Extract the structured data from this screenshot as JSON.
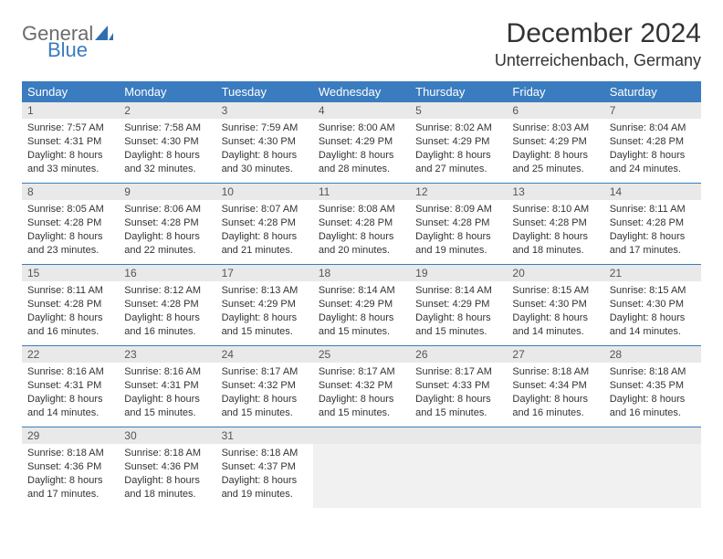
{
  "logo": {
    "line1": "General",
    "line2": "Blue"
  },
  "title": "December 2024",
  "location": "Unterreichenbach, Germany",
  "colors": {
    "header_bg": "#3a7cbf",
    "header_text": "#ffffff",
    "daynum_bg": "#e9e9e9",
    "text": "#333333",
    "rule": "#3a7cbf"
  },
  "dayNames": [
    "Sunday",
    "Monday",
    "Tuesday",
    "Wednesday",
    "Thursday",
    "Friday",
    "Saturday"
  ],
  "weeks": [
    [
      {
        "n": "1",
        "sr": "Sunrise: 7:57 AM",
        "ss": "Sunset: 4:31 PM",
        "d1": "Daylight: 8 hours",
        "d2": "and 33 minutes."
      },
      {
        "n": "2",
        "sr": "Sunrise: 7:58 AM",
        "ss": "Sunset: 4:30 PM",
        "d1": "Daylight: 8 hours",
        "d2": "and 32 minutes."
      },
      {
        "n": "3",
        "sr": "Sunrise: 7:59 AM",
        "ss": "Sunset: 4:30 PM",
        "d1": "Daylight: 8 hours",
        "d2": "and 30 minutes."
      },
      {
        "n": "4",
        "sr": "Sunrise: 8:00 AM",
        "ss": "Sunset: 4:29 PM",
        "d1": "Daylight: 8 hours",
        "d2": "and 28 minutes."
      },
      {
        "n": "5",
        "sr": "Sunrise: 8:02 AM",
        "ss": "Sunset: 4:29 PM",
        "d1": "Daylight: 8 hours",
        "d2": "and 27 minutes."
      },
      {
        "n": "6",
        "sr": "Sunrise: 8:03 AM",
        "ss": "Sunset: 4:29 PM",
        "d1": "Daylight: 8 hours",
        "d2": "and 25 minutes."
      },
      {
        "n": "7",
        "sr": "Sunrise: 8:04 AM",
        "ss": "Sunset: 4:28 PM",
        "d1": "Daylight: 8 hours",
        "d2": "and 24 minutes."
      }
    ],
    [
      {
        "n": "8",
        "sr": "Sunrise: 8:05 AM",
        "ss": "Sunset: 4:28 PM",
        "d1": "Daylight: 8 hours",
        "d2": "and 23 minutes."
      },
      {
        "n": "9",
        "sr": "Sunrise: 8:06 AM",
        "ss": "Sunset: 4:28 PM",
        "d1": "Daylight: 8 hours",
        "d2": "and 22 minutes."
      },
      {
        "n": "10",
        "sr": "Sunrise: 8:07 AM",
        "ss": "Sunset: 4:28 PM",
        "d1": "Daylight: 8 hours",
        "d2": "and 21 minutes."
      },
      {
        "n": "11",
        "sr": "Sunrise: 8:08 AM",
        "ss": "Sunset: 4:28 PM",
        "d1": "Daylight: 8 hours",
        "d2": "and 20 minutes."
      },
      {
        "n": "12",
        "sr": "Sunrise: 8:09 AM",
        "ss": "Sunset: 4:28 PM",
        "d1": "Daylight: 8 hours",
        "d2": "and 19 minutes."
      },
      {
        "n": "13",
        "sr": "Sunrise: 8:10 AM",
        "ss": "Sunset: 4:28 PM",
        "d1": "Daylight: 8 hours",
        "d2": "and 18 minutes."
      },
      {
        "n": "14",
        "sr": "Sunrise: 8:11 AM",
        "ss": "Sunset: 4:28 PM",
        "d1": "Daylight: 8 hours",
        "d2": "and 17 minutes."
      }
    ],
    [
      {
        "n": "15",
        "sr": "Sunrise: 8:11 AM",
        "ss": "Sunset: 4:28 PM",
        "d1": "Daylight: 8 hours",
        "d2": "and 16 minutes."
      },
      {
        "n": "16",
        "sr": "Sunrise: 8:12 AM",
        "ss": "Sunset: 4:28 PM",
        "d1": "Daylight: 8 hours",
        "d2": "and 16 minutes."
      },
      {
        "n": "17",
        "sr": "Sunrise: 8:13 AM",
        "ss": "Sunset: 4:29 PM",
        "d1": "Daylight: 8 hours",
        "d2": "and 15 minutes."
      },
      {
        "n": "18",
        "sr": "Sunrise: 8:14 AM",
        "ss": "Sunset: 4:29 PM",
        "d1": "Daylight: 8 hours",
        "d2": "and 15 minutes."
      },
      {
        "n": "19",
        "sr": "Sunrise: 8:14 AM",
        "ss": "Sunset: 4:29 PM",
        "d1": "Daylight: 8 hours",
        "d2": "and 15 minutes."
      },
      {
        "n": "20",
        "sr": "Sunrise: 8:15 AM",
        "ss": "Sunset: 4:30 PM",
        "d1": "Daylight: 8 hours",
        "d2": "and 14 minutes."
      },
      {
        "n": "21",
        "sr": "Sunrise: 8:15 AM",
        "ss": "Sunset: 4:30 PM",
        "d1": "Daylight: 8 hours",
        "d2": "and 14 minutes."
      }
    ],
    [
      {
        "n": "22",
        "sr": "Sunrise: 8:16 AM",
        "ss": "Sunset: 4:31 PM",
        "d1": "Daylight: 8 hours",
        "d2": "and 14 minutes."
      },
      {
        "n": "23",
        "sr": "Sunrise: 8:16 AM",
        "ss": "Sunset: 4:31 PM",
        "d1": "Daylight: 8 hours",
        "d2": "and 15 minutes."
      },
      {
        "n": "24",
        "sr": "Sunrise: 8:17 AM",
        "ss": "Sunset: 4:32 PM",
        "d1": "Daylight: 8 hours",
        "d2": "and 15 minutes."
      },
      {
        "n": "25",
        "sr": "Sunrise: 8:17 AM",
        "ss": "Sunset: 4:32 PM",
        "d1": "Daylight: 8 hours",
        "d2": "and 15 minutes."
      },
      {
        "n": "26",
        "sr": "Sunrise: 8:17 AM",
        "ss": "Sunset: 4:33 PM",
        "d1": "Daylight: 8 hours",
        "d2": "and 15 minutes."
      },
      {
        "n": "27",
        "sr": "Sunrise: 8:18 AM",
        "ss": "Sunset: 4:34 PM",
        "d1": "Daylight: 8 hours",
        "d2": "and 16 minutes."
      },
      {
        "n": "28",
        "sr": "Sunrise: 8:18 AM",
        "ss": "Sunset: 4:35 PM",
        "d1": "Daylight: 8 hours",
        "d2": "and 16 minutes."
      }
    ],
    [
      {
        "n": "29",
        "sr": "Sunrise: 8:18 AM",
        "ss": "Sunset: 4:36 PM",
        "d1": "Daylight: 8 hours",
        "d2": "and 17 minutes."
      },
      {
        "n": "30",
        "sr": "Sunrise: 8:18 AM",
        "ss": "Sunset: 4:36 PM",
        "d1": "Daylight: 8 hours",
        "d2": "and 18 minutes."
      },
      {
        "n": "31",
        "sr": "Sunrise: 8:18 AM",
        "ss": "Sunset: 4:37 PM",
        "d1": "Daylight: 8 hours",
        "d2": "and 19 minutes."
      },
      null,
      null,
      null,
      null
    ]
  ]
}
